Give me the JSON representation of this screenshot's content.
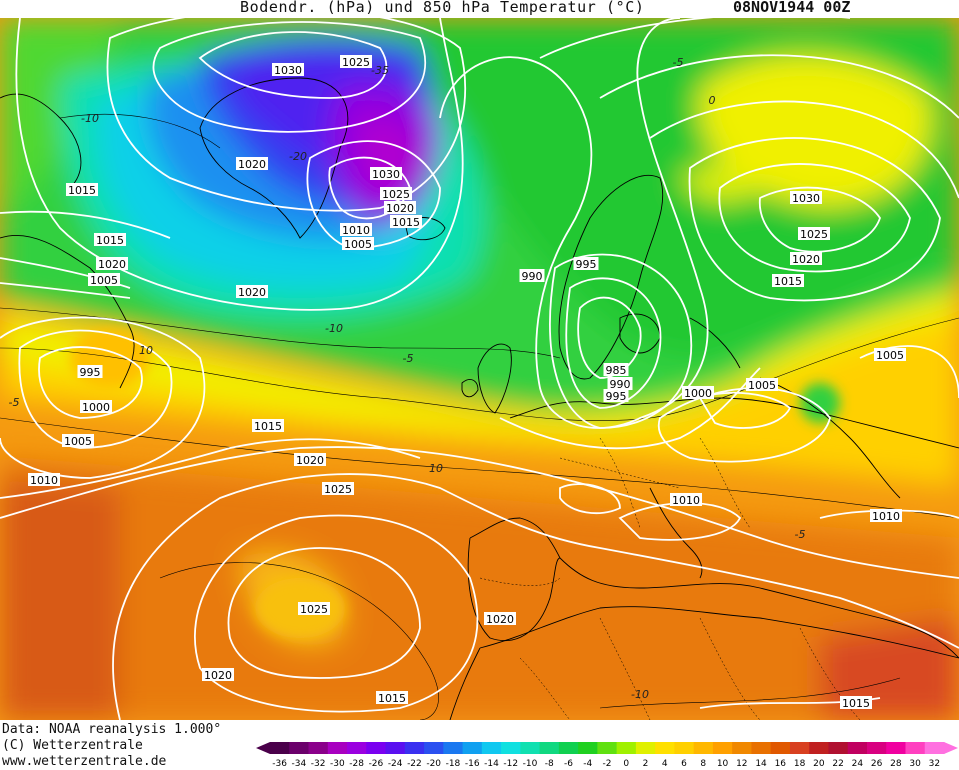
{
  "header": {
    "title": "Bodendr. (hPa) und 850 hPa Temperatur (°C)",
    "date": "08NOV1944 00Z"
  },
  "footer": {
    "data_source": "Data: NOAA reanalysis 1.000°",
    "copyright": "(C) Wetterzentrale",
    "website": "www.wetterzentrale.de"
  },
  "colorbar": {
    "ticks": [
      "-36",
      "-34",
      "-32",
      "-30",
      "-28",
      "-26",
      "-24",
      "-22",
      "-20",
      "-18",
      "-16",
      "-14",
      "-12",
      "-10",
      "-8",
      "-6",
      "-4",
      "-2",
      "0",
      "2",
      "4",
      "6",
      "8",
      "10",
      "12",
      "14",
      "16",
      "18",
      "20",
      "22",
      "24",
      "26",
      "28",
      "30",
      "32"
    ],
    "colors": [
      "#4a004a",
      "#6b006b",
      "#8a008a",
      "#a800c0",
      "#9a00e0",
      "#7a00f0",
      "#5a10f0",
      "#3a30f0",
      "#2a50f0",
      "#1a78f0",
      "#10a0f0",
      "#10c8f0",
      "#10e0e0",
      "#10e0b0",
      "#10d880",
      "#10d050",
      "#20d020",
      "#60e010",
      "#a0f000",
      "#e0f000",
      "#ffe000",
      "#ffd000",
      "#ffb800",
      "#ffa000",
      "#f08800",
      "#e87000",
      "#e05800",
      "#d84020",
      "#c02020",
      "#b01030",
      "#c00060",
      "#d80080",
      "#f000a0",
      "#ff40c0",
      "#ff70e0"
    ]
  },
  "map": {
    "isobar_labels": [
      {
        "text": "1030"
      },
      {
        "text": "1025"
      },
      {
        "text": "1020"
      },
      {
        "text": "1030"
      },
      {
        "text": "1025"
      },
      {
        "text": "1020"
      },
      {
        "text": "1015"
      },
      {
        "text": "1010"
      },
      {
        "text": "1005"
      },
      {
        "text": "1015"
      },
      {
        "text": "1015"
      },
      {
        "text": "1020"
      },
      {
        "text": "1005"
      },
      {
        "text": "1020"
      },
      {
        "text": "990"
      },
      {
        "text": "995"
      },
      {
        "text": "985"
      },
      {
        "text": "990"
      },
      {
        "text": "995"
      },
      {
        "text": "1030"
      },
      {
        "text": "1025"
      },
      {
        "text": "1020"
      },
      {
        "text": "1015"
      },
      {
        "text": "1005"
      },
      {
        "text": "1005"
      },
      {
        "text": "1000"
      },
      {
        "text": "995"
      },
      {
        "text": "1000"
      },
      {
        "text": "1005"
      },
      {
        "text": "1010"
      },
      {
        "text": "1015"
      },
      {
        "text": "1020"
      },
      {
        "text": "1025"
      },
      {
        "text": "1010"
      },
      {
        "text": "1010"
      },
      {
        "text": "1025"
      },
      {
        "text": "1020"
      },
      {
        "text": "1020"
      },
      {
        "text": "1015"
      },
      {
        "text": "1015"
      }
    ],
    "temperature_labels": [
      {
        "text": "-10"
      },
      {
        "text": "-20"
      },
      {
        "text": "-35"
      },
      {
        "text": "-5"
      },
      {
        "text": "0"
      },
      {
        "text": "-10"
      },
      {
        "text": "-5"
      },
      {
        "text": "10"
      },
      {
        "text": "-5"
      },
      {
        "text": "10"
      },
      {
        "text": "-5"
      },
      {
        "text": "-10"
      }
    ]
  }
}
